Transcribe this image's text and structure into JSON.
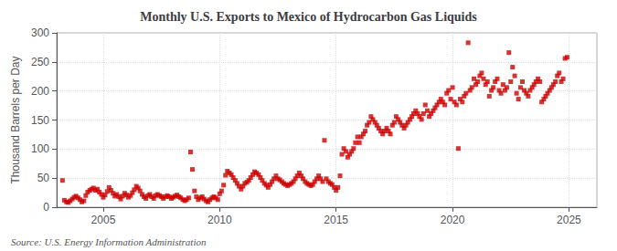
{
  "chart_data": {
    "type": "scatter",
    "title": "Monthly U.S. Exports to Mexico of Hydrocarbon Gas Liquids",
    "ylabel": "Thousand Barrels per Day",
    "annotations": [
      "Source: U.S. Energy Information Administration"
    ],
    "color": "#cc0000",
    "marker": "square",
    "grid": true,
    "xlim": [
      2003.0,
      2026.2
    ],
    "xticks": [
      2005,
      2010,
      2015,
      2020,
      2025
    ],
    "ylim": [
      0,
      300
    ],
    "yticks": [
      0,
      50,
      100,
      150,
      200,
      250,
      300
    ],
    "x": [
      2003.25,
      2003.33,
      2003.42,
      2003.5,
      2003.58,
      2003.67,
      2003.75,
      2003.83,
      2003.92,
      2004.0,
      2004.08,
      2004.17,
      2004.25,
      2004.33,
      2004.42,
      2004.5,
      2004.58,
      2004.67,
      2004.75,
      2004.83,
      2004.92,
      2005.0,
      2005.08,
      2005.17,
      2005.25,
      2005.33,
      2005.42,
      2005.5,
      2005.58,
      2005.67,
      2005.75,
      2005.83,
      2005.92,
      2006.0,
      2006.08,
      2006.17,
      2006.25,
      2006.33,
      2006.42,
      2006.5,
      2006.58,
      2006.67,
      2006.75,
      2006.83,
      2006.92,
      2007.0,
      2007.08,
      2007.17,
      2007.25,
      2007.33,
      2007.42,
      2007.5,
      2007.58,
      2007.67,
      2007.75,
      2007.83,
      2007.92,
      2008.0,
      2008.08,
      2008.17,
      2008.25,
      2008.33,
      2008.42,
      2008.5,
      2008.58,
      2008.67,
      2008.75,
      2008.83,
      2008.92,
      2009.0,
      2009.08,
      2009.17,
      2009.25,
      2009.33,
      2009.42,
      2009.5,
      2009.58,
      2009.67,
      2009.75,
      2009.83,
      2009.92,
      2010.0,
      2010.08,
      2010.17,
      2010.25,
      2010.33,
      2010.42,
      2010.5,
      2010.58,
      2010.67,
      2010.75,
      2010.83,
      2010.92,
      2011.0,
      2011.08,
      2011.17,
      2011.25,
      2011.33,
      2011.42,
      2011.5,
      2011.58,
      2011.67,
      2011.75,
      2011.83,
      2011.92,
      2012.0,
      2012.08,
      2012.17,
      2012.25,
      2012.33,
      2012.42,
      2012.5,
      2012.58,
      2012.67,
      2012.75,
      2012.83,
      2012.92,
      2013.0,
      2013.08,
      2013.17,
      2013.25,
      2013.33,
      2013.42,
      2013.5,
      2013.58,
      2013.67,
      2013.75,
      2013.83,
      2013.92,
      2014.0,
      2014.08,
      2014.17,
      2014.25,
      2014.33,
      2014.42,
      2014.5,
      2014.58,
      2014.67,
      2014.75,
      2014.83,
      2014.92,
      2015.0,
      2015.08,
      2015.17,
      2015.25,
      2015.33,
      2015.42,
      2015.5,
      2015.58,
      2015.67,
      2015.75,
      2015.83,
      2015.92,
      2016.0,
      2016.08,
      2016.17,
      2016.25,
      2016.33,
      2016.42,
      2016.5,
      2016.58,
      2016.67,
      2016.75,
      2016.83,
      2016.92,
      2017.0,
      2017.08,
      2017.17,
      2017.25,
      2017.33,
      2017.42,
      2017.5,
      2017.58,
      2017.67,
      2017.75,
      2017.83,
      2017.92,
      2018.0,
      2018.08,
      2018.17,
      2018.25,
      2018.33,
      2018.42,
      2018.5,
      2018.58,
      2018.67,
      2018.75,
      2018.83,
      2018.92,
      2019.0,
      2019.08,
      2019.17,
      2019.25,
      2019.33,
      2019.42,
      2019.5,
      2019.58,
      2019.67,
      2019.75,
      2019.83,
      2019.92,
      2020.0,
      2020.08,
      2020.17,
      2020.25,
      2020.33,
      2020.42,
      2020.5,
      2020.58,
      2020.67,
      2020.75,
      2020.83,
      2020.92,
      2021.0,
      2021.08,
      2021.17,
      2021.25,
      2021.33,
      2021.42,
      2021.5,
      2021.58,
      2021.67,
      2021.75,
      2021.83,
      2021.92,
      2022.0,
      2022.08,
      2022.17,
      2022.25,
      2022.33,
      2022.42,
      2022.5,
      2022.58,
      2022.67,
      2022.75,
      2022.83,
      2022.92,
      2023.0,
      2023.08,
      2023.17,
      2023.25,
      2023.33,
      2023.42,
      2023.5,
      2023.58,
      2023.67,
      2023.75,
      2023.83,
      2023.92,
      2024.0,
      2024.08,
      2024.17,
      2024.25,
      2024.33,
      2024.42,
      2024.5,
      2024.58,
      2024.67,
      2024.75,
      2024.83,
      2024.92
    ],
    "values": [
      46,
      12,
      9,
      8,
      11,
      14,
      17,
      19,
      16,
      13,
      9,
      11,
      20,
      26,
      29,
      31,
      33,
      29,
      31,
      26,
      22,
      17,
      21,
      27,
      34,
      29,
      24,
      19,
      22,
      18,
      14,
      19,
      24,
      21,
      17,
      20,
      25,
      30,
      36,
      33,
      28,
      22,
      18,
      15,
      20,
      22,
      18,
      15,
      20,
      22,
      20,
      18,
      15,
      18,
      20,
      18,
      15,
      17,
      19,
      21,
      18,
      16,
      13,
      11,
      13,
      16,
      95,
      65,
      28,
      18,
      13,
      16,
      18,
      14,
      11,
      9,
      13,
      16,
      18,
      16,
      13,
      23,
      28,
      38,
      55,
      62,
      59,
      56,
      51,
      46,
      41,
      36,
      31,
      36,
      41,
      43,
      46,
      51,
      56,
      61,
      59,
      56,
      51,
      46,
      41,
      38,
      34,
      39,
      44,
      49,
      54,
      49,
      47,
      44,
      41,
      39,
      37,
      39,
      41,
      44,
      49,
      54,
      59,
      54,
      49,
      44,
      41,
      39,
      37,
      39,
      44,
      49,
      54,
      49,
      44,
      115,
      49,
      44,
      41,
      39,
      34,
      29,
      34,
      54,
      91,
      101,
      96,
      86,
      91,
      96,
      101,
      111,
      121,
      111,
      121,
      126,
      131,
      141,
      146,
      156,
      151,
      146,
      141,
      136,
      131,
      126,
      131,
      136,
      131,
      126,
      141,
      146,
      156,
      151,
      146,
      141,
      136,
      141,
      146,
      151,
      156,
      161,
      166,
      161,
      156,
      151,
      161,
      176,
      166,
      156,
      161,
      166,
      171,
      176,
      181,
      186,
      181,
      176,
      196,
      201,
      186,
      206,
      181,
      176,
      101,
      186,
      181,
      191,
      196,
      283,
      201,
      206,
      221,
      211,
      216,
      226,
      231,
      221,
      211,
      216,
      191,
      201,
      206,
      216,
      221,
      201,
      196,
      211,
      201,
      206,
      266,
      216,
      241,
      226,
      196,
      186,
      206,
      216,
      201,
      196,
      191,
      201,
      206,
      211,
      216,
      221,
      216,
      181,
      186,
      191,
      196,
      201,
      206,
      211,
      216,
      226,
      231,
      216,
      221,
      256,
      258
    ]
  }
}
